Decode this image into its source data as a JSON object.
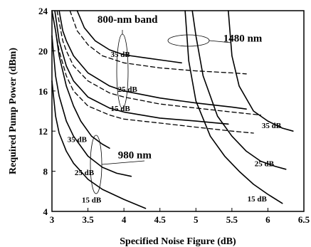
{
  "chart_data": {
    "type": "line",
    "xlabel": "Specified Noise Figure (dB)",
    "ylabel": "Required Pump Power (dBm)",
    "xlim": [
      3,
      6.5
    ],
    "ylim": [
      4,
      24
    ],
    "xticks": [
      "3",
      "3.5",
      "4",
      "4.5",
      "5",
      "5.5",
      "6",
      "6.5"
    ],
    "yticks": [
      "4",
      "8",
      "12",
      "16",
      "20",
      "24"
    ],
    "grid": false,
    "series": [
      {
        "group": "980",
        "gain": "15 dB",
        "style": "solid",
        "x": [
          3.0,
          3.05,
          3.1,
          3.2,
          3.3,
          3.5,
          3.7,
          4.0,
          4.3
        ],
        "y": [
          17.0,
          13.5,
          11.8,
          10.0,
          8.8,
          7.2,
          6.2,
          5.2,
          4.3
        ]
      },
      {
        "group": "980",
        "gain": "25 dB",
        "style": "solid",
        "x": [
          3.0,
          3.05,
          3.1,
          3.2,
          3.3,
          3.5,
          3.7,
          3.9,
          4.1
        ],
        "y": [
          21.5,
          17.5,
          15.5,
          13.0,
          11.5,
          9.5,
          8.4,
          7.8,
          7.5
        ]
      },
      {
        "group": "980",
        "gain": "35 dB",
        "style": "solid",
        "x": [
          3.0,
          3.05,
          3.1,
          3.2,
          3.3,
          3.4,
          3.55,
          3.7,
          3.8
        ],
        "y": [
          24.0,
          22.0,
          19.5,
          16.5,
          14.5,
          13.0,
          11.5,
          10.7,
          10.3
        ]
      },
      {
        "group": "800",
        "gain": "15 dB",
        "style": "solid",
        "x": [
          3.04,
          3.1,
          3.2,
          3.3,
          3.5,
          3.8,
          4.0,
          4.5,
          5.0,
          5.45
        ],
        "y": [
          24.0,
          21.0,
          18.5,
          17.0,
          15.4,
          14.3,
          13.9,
          13.3,
          13.0,
          12.7
        ]
      },
      {
        "group": "800",
        "gain": "15 dB",
        "style": "dashed",
        "x": [
          3.0,
          3.1,
          3.2,
          3.3,
          3.5,
          3.8,
          4.0,
          4.5,
          5.0,
          5.5,
          5.8
        ],
        "y": [
          24.0,
          20.0,
          17.5,
          16.0,
          14.5,
          13.6,
          13.2,
          12.8,
          12.4,
          12.0,
          11.8
        ]
      },
      {
        "group": "800",
        "gain": "25 dB",
        "style": "solid",
        "x": [
          3.1,
          3.15,
          3.2,
          3.3,
          3.5,
          3.8,
          4.0,
          4.5,
          5.0,
          5.5,
          5.7
        ],
        "y": [
          24.0,
          22.0,
          21.0,
          19.5,
          17.8,
          16.5,
          16.0,
          15.3,
          14.8,
          14.4,
          14.2
        ]
      },
      {
        "group": "800",
        "gain": "25 dB",
        "style": "dashed",
        "x": [
          3.07,
          3.15,
          3.2,
          3.3,
          3.5,
          3.8,
          4.0,
          4.5,
          5.0,
          5.5,
          5.9
        ],
        "y": [
          24.0,
          21.0,
          20.0,
          18.5,
          17.0,
          15.8,
          15.4,
          14.7,
          14.3,
          13.9,
          13.6
        ]
      },
      {
        "group": "800",
        "gain": "35 dB",
        "style": "solid",
        "x": [
          3.35,
          3.45,
          3.6,
          3.8,
          4.0,
          4.3,
          4.6,
          4.8
        ],
        "y": [
          24.0,
          22.3,
          21.0,
          20.1,
          19.6,
          19.3,
          19.0,
          18.8
        ]
      },
      {
        "group": "800",
        "gain": "35 dB",
        "style": "dashed",
        "x": [
          3.25,
          3.35,
          3.5,
          3.7,
          4.0,
          4.5,
          5.0,
          5.5,
          5.7
        ],
        "y": [
          24.0,
          22.0,
          20.6,
          19.5,
          18.8,
          18.3,
          18.0,
          17.8,
          17.7
        ]
      },
      {
        "group": "1480",
        "gain": "15 dB",
        "style": "solid",
        "x": [
          4.85,
          4.9,
          5.0,
          5.2,
          5.4,
          5.6,
          5.8,
          6.0,
          6.2
        ],
        "y": [
          24.0,
          19.0,
          15.0,
          11.5,
          9.5,
          8.0,
          6.7,
          5.7,
          4.8
        ]
      },
      {
        "group": "1480",
        "gain": "25 dB",
        "style": "solid",
        "x": [
          4.95,
          5.0,
          5.1,
          5.3,
          5.5,
          5.7,
          5.9,
          6.1,
          6.25
        ],
        "y": [
          24.0,
          21.5,
          17.5,
          13.5,
          11.5,
          10.0,
          9.0,
          8.5,
          8.2
        ]
      },
      {
        "group": "1480",
        "gain": "35 dB",
        "style": "solid",
        "x": [
          5.45,
          5.5,
          5.6,
          5.8,
          6.0,
          6.2,
          6.35
        ],
        "y": [
          24.0,
          19.5,
          16.5,
          14.0,
          13.0,
          12.3,
          12.0
        ]
      }
    ],
    "annotations": [
      {
        "text": "800-nm band",
        "x": 4.05,
        "y": 22.8
      },
      {
        "text": "1480 nm",
        "x": 5.65,
        "y": 20.9
      },
      {
        "text": "980 nm",
        "x": 4.15,
        "y": 9.3
      },
      {
        "text": "35 dB",
        "x": 3.95,
        "y": 19.4
      },
      {
        "text": "25 dB",
        "x": 4.05,
        "y": 15.9
      },
      {
        "text": "15 dB",
        "x": 3.95,
        "y": 14.0
      },
      {
        "text": "35 dB",
        "x": 3.35,
        "y": 10.9
      },
      {
        "text": "25 dB",
        "x": 3.45,
        "y": 7.6
      },
      {
        "text": "15 dB",
        "x": 3.55,
        "y": 4.9
      },
      {
        "text": "35 dB",
        "x": 6.05,
        "y": 12.3
      },
      {
        "text": "25 dB",
        "x": 5.95,
        "y": 8.5
      },
      {
        "text": "15 dB",
        "x": 5.85,
        "y": 5.0
      }
    ]
  }
}
